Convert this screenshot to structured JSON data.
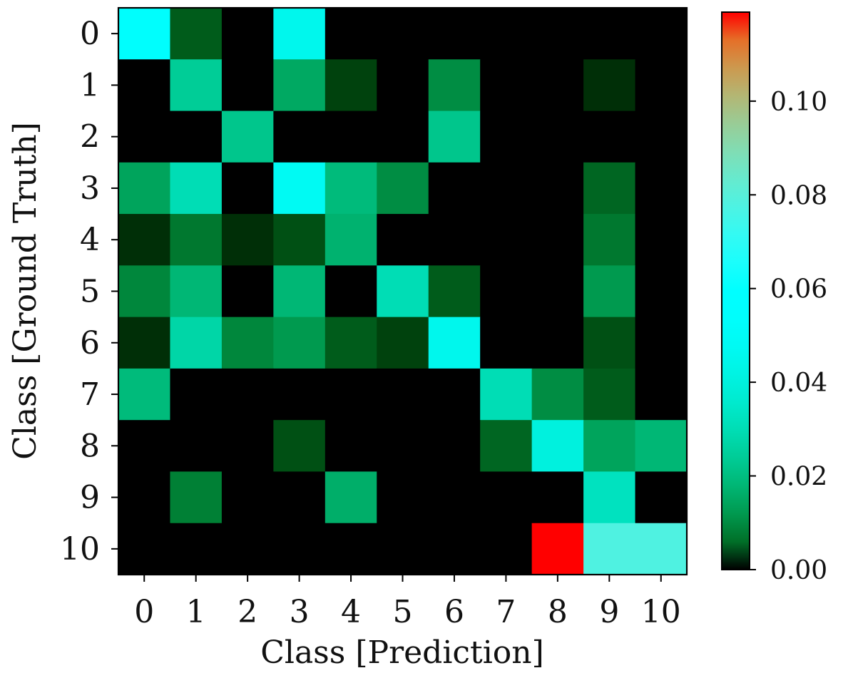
{
  "chart_data": {
    "type": "heatmap",
    "title": "",
    "xlabel": "Class [Prediction]",
    "ylabel": "Class [Ground Truth]",
    "x_categories": [
      "0",
      "1",
      "2",
      "3",
      "4",
      "5",
      "6",
      "7",
      "8",
      "9",
      "10"
    ],
    "y_categories": [
      "0",
      "1",
      "2",
      "3",
      "4",
      "5",
      "6",
      "7",
      "8",
      "9",
      "10"
    ],
    "values": [
      [
        0.055,
        0.004,
        0.0,
        0.045,
        0.0,
        0.0,
        0.0,
        0.0,
        0.0,
        0.0,
        0.0
      ],
      [
        0.0,
        0.024,
        0.0,
        0.015,
        0.002,
        0.0,
        0.01,
        0.0,
        0.0,
        0.001,
        0.0
      ],
      [
        0.0,
        0.0,
        0.022,
        0.0,
        0.0,
        0.0,
        0.022,
        0.0,
        0.0,
        0.0,
        0.0
      ],
      [
        0.014,
        0.03,
        0.0,
        0.048,
        0.019,
        0.01,
        0.0,
        0.0,
        0.0,
        0.005,
        0.0
      ],
      [
        0.001,
        0.007,
        0.001,
        0.003,
        0.017,
        0.0,
        0.0,
        0.0,
        0.0,
        0.007,
        0.0
      ],
      [
        0.009,
        0.018,
        0.0,
        0.018,
        0.0,
        0.03,
        0.004,
        0.0,
        0.0,
        0.012,
        0.0
      ],
      [
        0.001,
        0.027,
        0.009,
        0.012,
        0.004,
        0.002,
        0.045,
        0.0,
        0.0,
        0.003,
        0.0
      ],
      [
        0.019,
        0.0,
        0.0,
        0.0,
        0.0,
        0.0,
        0.0,
        0.03,
        0.01,
        0.004,
        0.0
      ],
      [
        0.0,
        0.0,
        0.0,
        0.003,
        0.0,
        0.0,
        0.0,
        0.005,
        0.04,
        0.014,
        0.018
      ],
      [
        0.0,
        0.008,
        0.0,
        0.0,
        0.016,
        0.0,
        0.0,
        0.0,
        0.0,
        0.032,
        0.0
      ],
      [
        0.0,
        0.0,
        0.0,
        0.0,
        0.0,
        0.0,
        0.0,
        0.0,
        0.119,
        0.078,
        0.078
      ]
    ],
    "colorbar": {
      "colormap": "rainbow",
      "range": [
        0,
        0.119
      ],
      "ticks": [
        0.0,
        0.02,
        0.04,
        0.06,
        0.08,
        0.1
      ],
      "tick_labels": [
        "0.00",
        "0.02",
        "0.04",
        "0.06",
        "0.08",
        "0.10"
      ]
    },
    "grid": false
  }
}
